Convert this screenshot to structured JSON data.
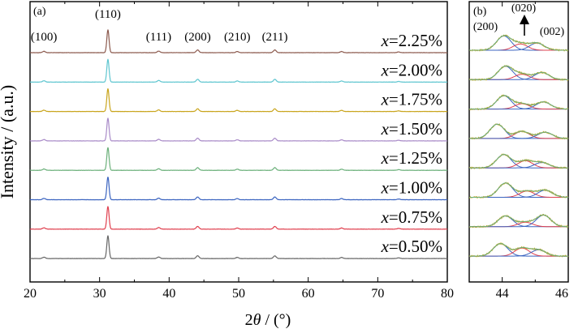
{
  "chart_data": [
    {
      "type": "line",
      "panel_label": "(a)",
      "xlabel_prefix": "2",
      "xlabel_symbol": "θ",
      "xlabel_suffix": " / (°)",
      "ylabel": "Intensity / (a.u.)",
      "xlim": [
        20,
        80
      ],
      "xticks": [
        "20",
        "30",
        "40",
        "50",
        "60",
        "70",
        "80"
      ],
      "peak_labels": [
        {
          "text": "(100)",
          "x": 22.0
        },
        {
          "text": "(110)",
          "x": 31.2
        },
        {
          "text": "(111)",
          "x": 38.5
        },
        {
          "text": "(200)",
          "x": 44.1
        },
        {
          "text": "(210)",
          "x": 49.8
        },
        {
          "text": "(211)",
          "x": 55.2
        }
      ],
      "peaks": [
        {
          "x": 22.0,
          "rel": 0.06
        },
        {
          "x": 31.2,
          "rel": 1.0
        },
        {
          "x": 38.5,
          "rel": 0.07
        },
        {
          "x": 44.1,
          "rel": 0.12
        },
        {
          "x": 49.8,
          "rel": 0.05
        },
        {
          "x": 55.2,
          "rel": 0.12
        },
        {
          "x": 64.8,
          "rel": 0.05
        },
        {
          "x": 73.0,
          "rel": 0.03
        }
      ],
      "series": [
        {
          "var": "x",
          "eq": "=",
          "value": "2.25%",
          "color": "#8c5a4e"
        },
        {
          "var": "x",
          "eq": "=",
          "value": "2.00%",
          "color": "#5fc6d0"
        },
        {
          "var": "x",
          "eq": "=",
          "value": "1.75%",
          "color": "#c9a51d"
        },
        {
          "var": "x",
          "eq": "=",
          "value": "1.50%",
          "color": "#a98bc8"
        },
        {
          "var": "x",
          "eq": "=",
          "value": "1.25%",
          "color": "#6bb07a"
        },
        {
          "var": "x",
          "eq": "=",
          "value": "1.00%",
          "color": "#3b64c0"
        },
        {
          "var": "x",
          "eq": "=",
          "value": "0.75%",
          "color": "#e0404f"
        },
        {
          "var": "x",
          "eq": "=",
          "value": "0.50%",
          "color": "#666666"
        }
      ]
    },
    {
      "type": "line",
      "panel_label": "(b)",
      "xlim": [
        43,
        46
      ],
      "xticks": [
        "44",
        "46"
      ],
      "peak_labels": [
        {
          "text": "(200)"
        },
        {
          "text": "(020)"
        },
        {
          "text": "(002)"
        }
      ],
      "fit_colors": {
        "total": "#6bb07a",
        "c200": "#3b64c0",
        "c020": "#e0404f",
        "c002": "#3b64c0",
        "data": "#c9a51d"
      },
      "series": [
        {
          "value": "2.25%",
          "components": [
            {
              "x": 44.05,
              "a": 0.8
            },
            {
              "x": 44.55,
              "a": 0.35
            },
            {
              "x": 45.05,
              "a": 0.4
            }
          ]
        },
        {
          "value": "2.00%",
          "components": [
            {
              "x": 44.1,
              "a": 0.75
            },
            {
              "x": 44.6,
              "a": 0.3
            },
            {
              "x": 45.2,
              "a": 0.4
            }
          ]
        },
        {
          "value": "1.75%",
          "components": [
            {
              "x": 44.05,
              "a": 0.75
            },
            {
              "x": 44.6,
              "a": 0.3
            },
            {
              "x": 45.25,
              "a": 0.4
            }
          ]
        },
        {
          "value": "1.50%",
          "components": [
            {
              "x": 43.85,
              "a": 0.8
            },
            {
              "x": 44.6,
              "a": 0.4
            },
            {
              "x": 45.3,
              "a": 0.35
            }
          ]
        },
        {
          "value": "1.25%",
          "components": [
            {
              "x": 44.05,
              "a": 0.75
            },
            {
              "x": 44.7,
              "a": 0.4
            },
            {
              "x": 45.2,
              "a": 0.3
            }
          ]
        },
        {
          "value": "1.00%",
          "components": [
            {
              "x": 44.1,
              "a": 0.8
            },
            {
              "x": 44.75,
              "a": 0.35
            },
            {
              "x": 45.3,
              "a": 0.4
            }
          ]
        },
        {
          "value": "0.75%",
          "components": [
            {
              "x": 44.1,
              "a": 0.6
            },
            {
              "x": 44.7,
              "a": 0.25
            },
            {
              "x": 45.25,
              "a": 0.65
            }
          ]
        },
        {
          "value": "0.50%",
          "components": [
            {
              "x": 43.95,
              "a": 0.7
            },
            {
              "x": 44.6,
              "a": 0.45
            },
            {
              "x": 45.1,
              "a": 0.35
            }
          ]
        }
      ]
    }
  ]
}
